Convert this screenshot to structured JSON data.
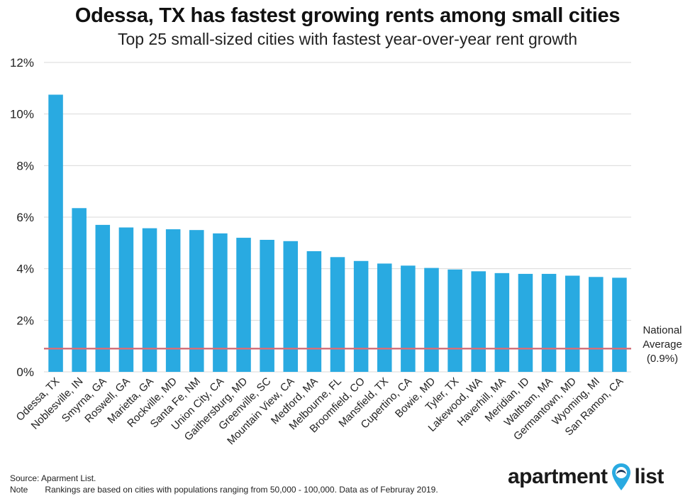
{
  "title": "Odessa, TX has fastest growing rents among small cities",
  "subtitle": "Top 25 small-sized cities with fastest year-over-year rent growth",
  "chart_data": {
    "type": "bar",
    "categories": [
      "Odessa, TX",
      "Noblesville, IN",
      "Smyrna, GA",
      "Roswell, GA",
      "Marietta, GA",
      "Rockville, MD",
      "Santa Fe, NM",
      "Union City, CA",
      "Gaithersburg, MD",
      "Greenville, SC",
      "Mountain View, CA",
      "Medford, MA",
      "Melbourne, FL",
      "Broomfield, CO",
      "Mansfield, TX",
      "Cupertino, CA",
      "Bowie, MD",
      "Tyler, TX",
      "Lakewood, WA",
      "Haverhill, MA",
      "Meridian, ID",
      "Waltham, MA",
      "Germantown, MD",
      "Wyoming, MI",
      "San Ramon, CA"
    ],
    "values": [
      10.75,
      6.35,
      5.7,
      5.6,
      5.57,
      5.53,
      5.5,
      5.37,
      5.2,
      5.12,
      5.07,
      4.68,
      4.45,
      4.3,
      4.2,
      4.12,
      4.03,
      3.97,
      3.9,
      3.83,
      3.8,
      3.8,
      3.73,
      3.68,
      3.65
    ],
    "yticks": [
      "0%",
      "2%",
      "4%",
      "6%",
      "8%",
      "10%",
      "12%"
    ],
    "ylim": [
      0,
      12
    ],
    "grid": true,
    "bar_color": "#29aae1",
    "reference_line": {
      "value": 0.9,
      "color": "#d4717b",
      "label_lines": [
        "National",
        "Average",
        "(0.9%)"
      ]
    }
  },
  "footer": {
    "source": "Source: Aparment List.",
    "note_label": "Note",
    "note_text": "Rankings are based on cities with populations ranging from 50,000 - 100,000. Data as of Februray 2019."
  },
  "logo": {
    "word1": "apartment",
    "word2": "list",
    "pin_color": "#29aae1",
    "icon": "map-pin-icon"
  }
}
